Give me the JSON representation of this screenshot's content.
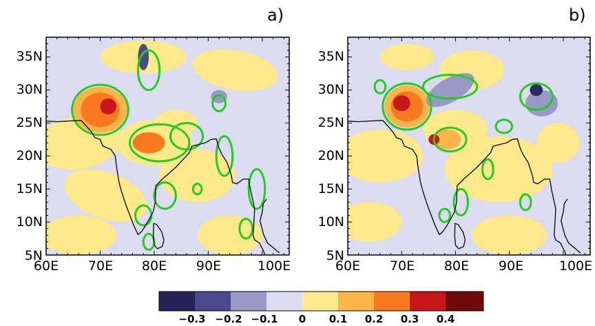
{
  "panels": [
    {
      "label": "a)",
      "background_color": "#dcdcf0",
      "blobs": [
        {
          "lon": 66,
          "lat": 22,
          "rx": 8,
          "ry": 4,
          "color": "#fde88a",
          "rot": -10
        },
        {
          "lon": 71,
          "lat": 14,
          "rx": 8,
          "ry": 3.5,
          "color": "#fde88a",
          "rot": 20
        },
        {
          "lon": 66,
          "lat": 8,
          "rx": 7,
          "ry": 3,
          "color": "#fde88a",
          "rot": 0
        },
        {
          "lon": 78,
          "lat": 35,
          "rx": 8,
          "ry": 2.5,
          "color": "#fde88a",
          "rot": 0
        },
        {
          "lon": 95,
          "lat": 33,
          "rx": 8,
          "ry": 3,
          "color": "#fde88a",
          "rot": 10
        },
        {
          "lon": 88,
          "lat": 17,
          "rx": 7,
          "ry": 4,
          "color": "#fde88a",
          "rot": 0
        },
        {
          "lon": 94,
          "lat": 8,
          "rx": 6,
          "ry": 3,
          "color": "#fde88a",
          "rot": 0
        },
        {
          "lon": 80,
          "lat": 22,
          "rx": 7,
          "ry": 3.5,
          "color": "#fde88a",
          "rot": 0
        },
        {
          "lon": 84,
          "lat": 25,
          "rx": 4,
          "ry": 2,
          "color": "#fde88a",
          "rot": 0
        },
        {
          "lon": 70,
          "lat": 27,
          "rx": 5,
          "ry": 3.5,
          "color": "#fbb448",
          "rot": 0
        },
        {
          "lon": 70,
          "lat": 27,
          "rx": 3.6,
          "ry": 2.6,
          "color": "#f97a1e",
          "rot": 0
        },
        {
          "lon": 71.5,
          "lat": 27.5,
          "rx": 1.5,
          "ry": 1.2,
          "color": "#c8161c",
          "rot": 0
        },
        {
          "lon": 79,
          "lat": 22,
          "rx": 3,
          "ry": 1.6,
          "color": "#f97a1e",
          "rot": 0
        },
        {
          "lon": 78,
          "lat": 35,
          "rx": 1,
          "ry": 2,
          "color": "#4a4a8a",
          "rot": 0
        },
        {
          "lon": 92,
          "lat": 29,
          "rx": 1.5,
          "ry": 1,
          "color": "#9999c8",
          "rot": 0
        }
      ],
      "contours": [
        {
          "lon": 70,
          "lat": 27,
          "rx": 5.2,
          "ry": 3.8
        },
        {
          "lon": 81,
          "lat": 22,
          "rx": 5.5,
          "ry": 2.8
        },
        {
          "lon": 86,
          "lat": 23,
          "rx": 3,
          "ry": 2
        },
        {
          "lon": 79,
          "lat": 33,
          "rx": 2,
          "ry": 3
        },
        {
          "lon": 82,
          "lat": 14,
          "rx": 2,
          "ry": 2
        },
        {
          "lon": 78,
          "lat": 11,
          "rx": 1.5,
          "ry": 1.5
        },
        {
          "lon": 79,
          "lat": 7,
          "rx": 1,
          "ry": 1.2
        },
        {
          "lon": 92,
          "lat": 28,
          "rx": 1.2,
          "ry": 1.2
        },
        {
          "lon": 93,
          "lat": 20,
          "rx": 1.5,
          "ry": 3
        },
        {
          "lon": 99,
          "lat": 15,
          "rx": 1.5,
          "ry": 3
        },
        {
          "lon": 97,
          "lat": 9,
          "rx": 1.2,
          "ry": 1.5
        },
        {
          "lon": 88,
          "lat": 15,
          "rx": 0.8,
          "ry": 0.8
        }
      ]
    },
    {
      "label": "b)",
      "background_color": "#dcdcf0",
      "blobs": [
        {
          "lon": 66,
          "lat": 20,
          "rx": 8,
          "ry": 4,
          "color": "#fde88a",
          "rot": 0
        },
        {
          "lon": 64,
          "lat": 10,
          "rx": 6,
          "ry": 3,
          "color": "#fde88a",
          "rot": 0
        },
        {
          "lon": 71,
          "lat": 35,
          "rx": 5,
          "ry": 2,
          "color": "#fde88a",
          "rot": 0
        },
        {
          "lon": 83,
          "lat": 33,
          "rx": 6,
          "ry": 3,
          "color": "#fde88a",
          "rot": 0
        },
        {
          "lon": 88,
          "lat": 18,
          "rx": 10,
          "ry": 5,
          "color": "#fde88a",
          "rot": 0
        },
        {
          "lon": 90,
          "lat": 8,
          "rx": 7,
          "ry": 3,
          "color": "#fde88a",
          "rot": 0
        },
        {
          "lon": 80,
          "lat": 24,
          "rx": 6,
          "ry": 3,
          "color": "#fde88a",
          "rot": 0
        },
        {
          "lon": 99,
          "lat": 22,
          "rx": 4,
          "ry": 3,
          "color": "#fde88a",
          "rot": 0
        },
        {
          "lon": 71,
          "lat": 27.5,
          "rx": 4.2,
          "ry": 3.2,
          "color": "#fbb448",
          "rot": 0
        },
        {
          "lon": 71,
          "lat": 27.5,
          "rx": 3,
          "ry": 2.3,
          "color": "#f97a1e",
          "rot": 0
        },
        {
          "lon": 70,
          "lat": 28,
          "rx": 1.6,
          "ry": 1.2,
          "color": "#c8161c",
          "rot": 0
        },
        {
          "lon": 78.5,
          "lat": 22.5,
          "rx": 2.5,
          "ry": 1.5,
          "color": "#fbb448",
          "rot": 0
        },
        {
          "lon": 76,
          "lat": 22.5,
          "rx": 1,
          "ry": 0.8,
          "color": "#c8161c",
          "rot": 0
        },
        {
          "lon": 79,
          "lat": 30,
          "rx": 5,
          "ry": 1.8,
          "color": "#9999c8",
          "rot": -30
        },
        {
          "lon": 96,
          "lat": 28,
          "rx": 3,
          "ry": 2,
          "color": "#9999c8",
          "rot": 0
        },
        {
          "lon": 95,
          "lat": 30,
          "rx": 1.2,
          "ry": 0.9,
          "color": "#2a2a60",
          "rot": 0
        }
      ],
      "contours": [
        {
          "lon": 71,
          "lat": 27.5,
          "rx": 4.5,
          "ry": 3.5
        },
        {
          "lon": 79,
          "lat": 22.5,
          "rx": 3,
          "ry": 1.8
        },
        {
          "lon": 79,
          "lat": 30.5,
          "rx": 5,
          "ry": 1.8
        },
        {
          "lon": 95,
          "lat": 29,
          "rx": 3,
          "ry": 2
        },
        {
          "lon": 89,
          "lat": 24.5,
          "rx": 1.5,
          "ry": 1
        },
        {
          "lon": 86,
          "lat": 18,
          "rx": 1,
          "ry": 1.5
        },
        {
          "lon": 81,
          "lat": 13,
          "rx": 1.3,
          "ry": 2
        },
        {
          "lon": 78,
          "lat": 11,
          "rx": 1,
          "ry": 1
        },
        {
          "lon": 66,
          "lat": 30.5,
          "rx": 1,
          "ry": 1
        },
        {
          "lon": 93,
          "lat": 13,
          "rx": 1,
          "ry": 1.2
        }
      ]
    }
  ],
  "lon_ticks": [
    "60E",
    "70E",
    "80E",
    "90E",
    "100E"
  ],
  "lat_ticks": [
    "35N",
    "30N",
    "25N",
    "20N",
    "15N",
    "10N",
    "5N"
  ],
  "colorbar": {
    "colors": [
      "#232358",
      "#4a4a8a",
      "#9999c8",
      "#dcdcf0",
      "#fde88a",
      "#fbb448",
      "#f97a1e",
      "#c8161c",
      "#6e0a0a"
    ],
    "labels": [
      "−0.3",
      "−0.2",
      "−0.1",
      "0",
      "0.1",
      "0.2",
      "0.3",
      "0.4"
    ]
  },
  "contour_color": "#22cc22",
  "coast_color": "#000000"
}
